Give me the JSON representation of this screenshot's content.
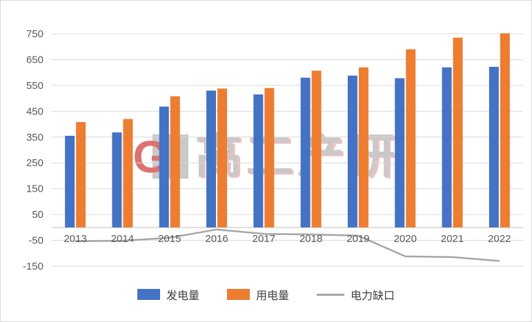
{
  "chart_data": {
    "type": "bar",
    "title": "",
    "categories": [
      "2013",
      "2014",
      "2015",
      "2016",
      "2017",
      "2018",
      "2019",
      "2020",
      "2021",
      "2022"
    ],
    "series": [
      {
        "name": "发电量",
        "type": "bar",
        "color": "#4472C4",
        "values": [
          355,
          368,
          468,
          530,
          515,
          580,
          588,
          578,
          620,
          622
        ]
      },
      {
        "name": "用电量",
        "type": "bar",
        "color": "#ED7D31",
        "values": [
          408,
          420,
          508,
          538,
          540,
          607,
          620,
          690,
          735,
          752
        ]
      },
      {
        "name": "电力缺口",
        "type": "line",
        "color": "#A6A6A6",
        "values": [
          -53,
          -52,
          -40,
          -8,
          -25,
          -27,
          -32,
          -112,
          -115,
          -130
        ]
      }
    ],
    "xlabel": "",
    "ylabel": "",
    "ylim": [
      -150,
      750
    ],
    "yticks": [
      -150,
      -50,
      50,
      150,
      250,
      350,
      450,
      550,
      650,
      750
    ],
    "grid": true,
    "legend_position": "bottom"
  },
  "legend": {
    "items": [
      "发电量",
      "用电量",
      "电力缺口"
    ]
  },
  "watermark": {
    "logo_letter": "G",
    "text": "高工产研"
  },
  "colors": {
    "bar_generation": "#4472C4",
    "bar_consumption": "#ED7D31",
    "line_gap": "#A6A6A6",
    "gridline": "#D9D9D9",
    "axis_line": "#BFBFBF",
    "tick_text": "#595959",
    "frame_border": "#D9D9D9",
    "watermark_gray": "#9E9E9E",
    "watermark_red": "#C00000"
  }
}
